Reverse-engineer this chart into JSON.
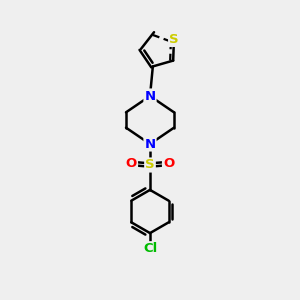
{
  "background_color": "#efefef",
  "bond_color": "#000000",
  "bond_width": 1.8,
  "atom_colors": {
    "N": "#0000ff",
    "S_thiophene": "#cccc00",
    "S_sulfonyl": "#cccc00",
    "O": "#ff0000",
    "Cl": "#00bb00",
    "C": "#000000"
  },
  "font_size": 9.5
}
